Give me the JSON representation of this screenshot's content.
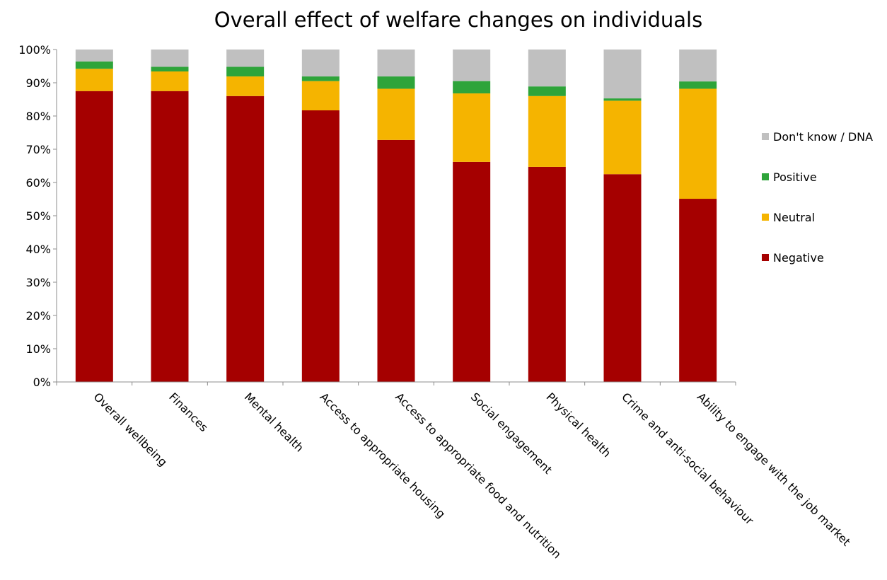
{
  "chart_data": {
    "type": "bar",
    "stacked": true,
    "title": "Overall effect of welfare changes on individuals",
    "xlabel": "",
    "ylabel": "",
    "ylim": [
      0,
      100
    ],
    "y_ticks": [
      "0%",
      "10%",
      "20%",
      "30%",
      "40%",
      "50%",
      "60%",
      "70%",
      "80%",
      "90%",
      "100%"
    ],
    "grid": false,
    "legend_position": "right",
    "categories": [
      "Overall wellbeing",
      "Finances",
      "Mental health",
      "Access to appropriate housing",
      "Access to appropriate food and nutrition",
      "Social engagement",
      "Physical health",
      "Crime and anti-social behaviour",
      "Ability to engage with the job market"
    ],
    "series": [
      {
        "name": "Negative",
        "color": "#a50000",
        "values": [
          87.5,
          87.5,
          86.0,
          81.7,
          72.8,
          66.2,
          64.7,
          62.5,
          55.1
        ]
      },
      {
        "name": "Neutral",
        "color": "#f5b400",
        "values": [
          6.7,
          5.9,
          5.9,
          8.8,
          15.4,
          20.6,
          21.3,
          22.1,
          33.1
        ]
      },
      {
        "name": "Positive",
        "color": "#2ea43a",
        "values": [
          2.2,
          1.4,
          2.9,
          1.4,
          3.7,
          3.7,
          2.9,
          0.7,
          2.2
        ]
      },
      {
        "name": "Don't know / DNA",
        "color": "#c0c0c0",
        "values": [
          3.6,
          5.2,
          5.2,
          8.1,
          8.1,
          9.5,
          11.1,
          14.7,
          9.6
        ]
      }
    ],
    "legend_order": [
      "Don't know / DNA",
      "Positive",
      "Neutral",
      "Negative"
    ]
  }
}
